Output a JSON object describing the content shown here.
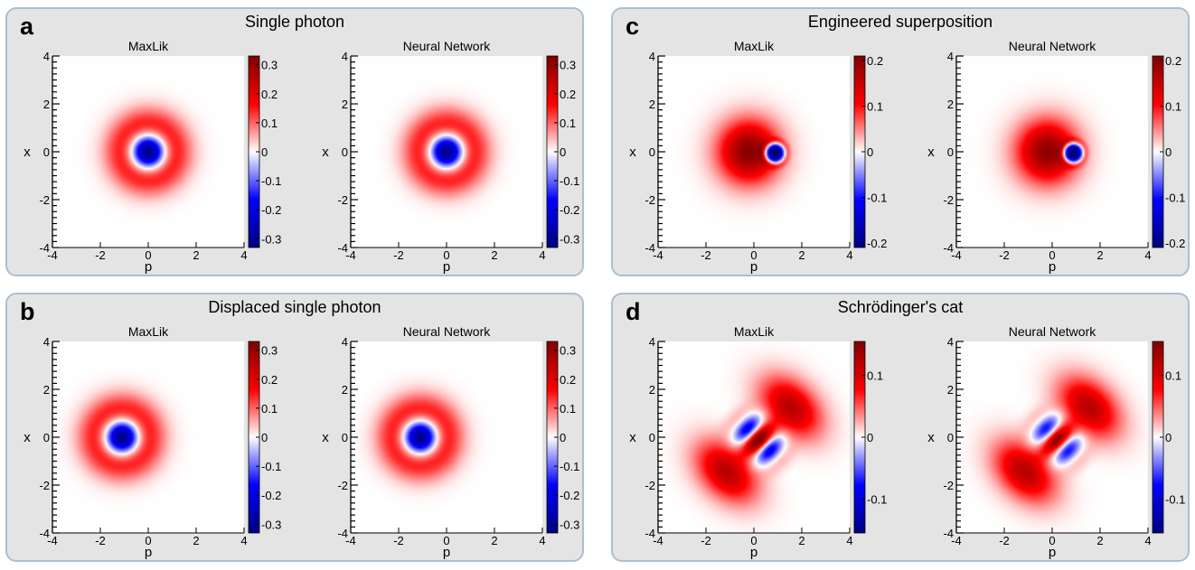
{
  "chart_data": [
    {
      "type": "heatmap",
      "panel_label": "a",
      "title": "Single photon",
      "state": "fock1",
      "params": {
        "cx": 0,
        "cy": 0
      },
      "colorbar": {
        "min": -0.33,
        "max": 0.33,
        "ticks": [
          0.3,
          0.2,
          0.1,
          0,
          -0.1,
          -0.2,
          -0.3
        ],
        "tick_labels": [
          "0.3",
          "0.2",
          "0.1",
          "0",
          "-0.1",
          "-0.2",
          "-0.3"
        ]
      },
      "subplots": [
        {
          "subtitle": "MaxLik",
          "xlabel": "p",
          "ylabel": "x",
          "xlim": [
            -4,
            4
          ],
          "ylim": [
            -4,
            4
          ],
          "xticks": [
            -4,
            -2,
            0,
            2,
            4
          ],
          "yticks": [
            -4,
            -2,
            0,
            2,
            4
          ]
        },
        {
          "subtitle": "Neural Network",
          "xlabel": "p",
          "ylabel": "x",
          "xlim": [
            -4,
            4
          ],
          "ylim": [
            -4,
            4
          ],
          "xticks": [
            -4,
            -2,
            0,
            2,
            4
          ],
          "yticks": [
            -4,
            -2,
            0,
            2,
            4
          ]
        }
      ]
    },
    {
      "type": "heatmap",
      "panel_label": "c",
      "title": "Engineered superposition",
      "state": "superposition",
      "params": {
        "cx": 0,
        "cy": 0,
        "hx": 0.85,
        "hy": -0.05
      },
      "colorbar": {
        "min": -0.21,
        "max": 0.21,
        "ticks": [
          0.2,
          0.1,
          0,
          -0.1,
          -0.2
        ],
        "tick_labels": [
          "0.2",
          "0.1",
          "0",
          "-0.1",
          "-0.2"
        ]
      },
      "subplots": [
        {
          "subtitle": "MaxLik",
          "xlabel": "p",
          "ylabel": "x",
          "xlim": [
            -4,
            4
          ],
          "ylim": [
            -4,
            4
          ],
          "xticks": [
            -4,
            -2,
            0,
            2,
            4
          ],
          "yticks": [
            -4,
            -2,
            0,
            2,
            4
          ]
        },
        {
          "subtitle": "Neural Network",
          "xlabel": "p",
          "ylabel": "x",
          "xlim": [
            -4,
            4
          ],
          "ylim": [
            -4,
            4
          ],
          "xticks": [
            -4,
            -2,
            0,
            2,
            4
          ],
          "yticks": [
            -4,
            -2,
            0,
            2,
            4
          ]
        }
      ]
    },
    {
      "type": "heatmap",
      "panel_label": "b",
      "title": "Displaced single photon",
      "state": "fock1",
      "params": {
        "cx": -1.1,
        "cy": 0
      },
      "colorbar": {
        "min": -0.33,
        "max": 0.33,
        "ticks": [
          0.3,
          0.2,
          0.1,
          0,
          -0.1,
          -0.2,
          -0.3
        ],
        "tick_labels": [
          "0.3",
          "0.2",
          "0.1",
          "0",
          "-0.1",
          "-0.2",
          "-0.3"
        ]
      },
      "subplots": [
        {
          "subtitle": "MaxLik",
          "xlabel": "p",
          "ylabel": "x",
          "xlim": [
            -4,
            4
          ],
          "ylim": [
            -4,
            4
          ],
          "xticks": [
            -4,
            -2,
            0,
            2,
            4
          ],
          "yticks": [
            -4,
            -2,
            0,
            2,
            4
          ]
        },
        {
          "subtitle": "Neural Network",
          "xlabel": "p",
          "ylabel": "x",
          "xlim": [
            -4,
            4
          ],
          "ylim": [
            -4,
            4
          ],
          "xticks": [
            -4,
            -2,
            0,
            2,
            4
          ],
          "yticks": [
            -4,
            -2,
            0,
            2,
            4
          ]
        }
      ]
    },
    {
      "type": "heatmap",
      "panel_label": "d",
      "title": "Schrödinger's cat",
      "state": "cat",
      "params": {
        "angle_deg": -45,
        "separation": 1.9,
        "cx": 0.2,
        "cy": -0.1
      },
      "colorbar": {
        "min": -0.155,
        "max": 0.155,
        "ticks": [
          0.1,
          0,
          -0.1
        ],
        "tick_labels": [
          "0.1",
          "0",
          "-0.1"
        ]
      },
      "subplots": [
        {
          "subtitle": "MaxLik",
          "xlabel": "p",
          "ylabel": "x",
          "xlim": [
            -4,
            4
          ],
          "ylim": [
            -4,
            4
          ],
          "xticks": [
            -4,
            -2,
            0,
            2,
            4
          ],
          "yticks": [
            -4,
            -2,
            0,
            2,
            4
          ]
        },
        {
          "subtitle": "Neural Network",
          "xlabel": "p",
          "ylabel": "x",
          "xlim": [
            -4,
            4
          ],
          "ylim": [
            -4,
            4
          ],
          "xticks": [
            -4,
            -2,
            0,
            2,
            4
          ],
          "yticks": [
            -4,
            -2,
            0,
            2,
            4
          ]
        }
      ]
    }
  ]
}
